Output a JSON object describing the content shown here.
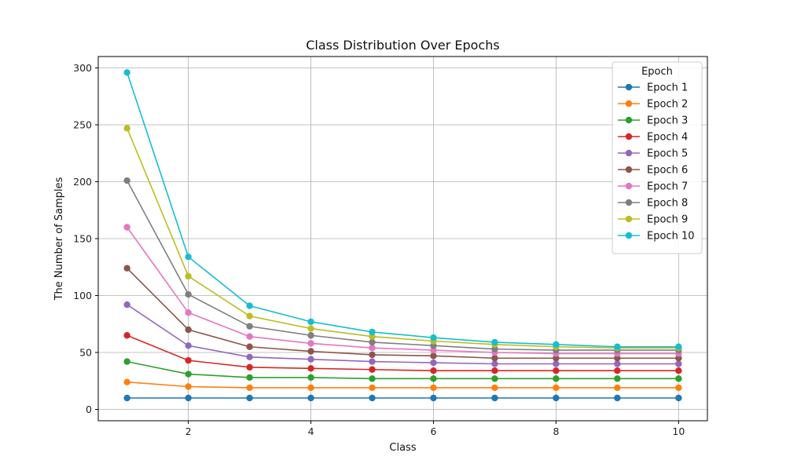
{
  "chart_data": {
    "type": "line",
    "title": "Class Distribution Over Epochs",
    "xlabel": "Class",
    "ylabel": "The Number of Samples",
    "x": [
      1,
      2,
      3,
      4,
      5,
      6,
      7,
      8,
      9,
      10
    ],
    "xlim": [
      0.53,
      10.47
    ],
    "ylim": [
      -10,
      310
    ],
    "xticks": [
      2,
      4,
      6,
      8,
      10
    ],
    "yticks": [
      0,
      50,
      100,
      150,
      200,
      250,
      300
    ],
    "grid": true,
    "legend": {
      "title": "Epoch",
      "position": "top-right"
    },
    "series": [
      {
        "name": "Epoch 1",
        "color": "#1f77b4",
        "values": [
          10,
          10,
          10,
          10,
          10,
          10,
          10,
          10,
          10,
          10
        ]
      },
      {
        "name": "Epoch 2",
        "color": "#ff7f0e",
        "values": [
          24,
          20,
          19,
          19,
          19,
          19,
          19,
          19,
          19,
          19
        ]
      },
      {
        "name": "Epoch 3",
        "color": "#2ca02c",
        "values": [
          42,
          31,
          28,
          28,
          27,
          27,
          27,
          27,
          27,
          27
        ]
      },
      {
        "name": "Epoch 4",
        "color": "#d62728",
        "values": [
          65,
          43,
          37,
          36,
          35,
          34,
          34,
          34,
          34,
          34
        ]
      },
      {
        "name": "Epoch 5",
        "color": "#9467bd",
        "values": [
          92,
          56,
          46,
          44,
          42,
          41,
          40,
          40,
          40,
          40
        ]
      },
      {
        "name": "Epoch 6",
        "color": "#8c564b",
        "values": [
          124,
          70,
          55,
          51,
          48,
          47,
          45,
          45,
          45,
          45
        ]
      },
      {
        "name": "Epoch 7",
        "color": "#e377c2",
        "values": [
          160,
          85,
          64,
          58,
          54,
          52,
          50,
          49,
          49,
          49
        ]
      },
      {
        "name": "Epoch 8",
        "color": "#7f7f7f",
        "values": [
          201,
          101,
          73,
          65,
          59,
          56,
          53,
          52,
          52,
          52
        ]
      },
      {
        "name": "Epoch 9",
        "color": "#bcbd22",
        "values": [
          247,
          117,
          82,
          71,
          64,
          60,
          57,
          55,
          54,
          54
        ]
      },
      {
        "name": "Epoch 10",
        "color": "#17becf",
        "values": [
          296,
          134,
          91,
          77,
          68,
          63,
          59,
          57,
          55,
          55
        ]
      }
    ]
  }
}
